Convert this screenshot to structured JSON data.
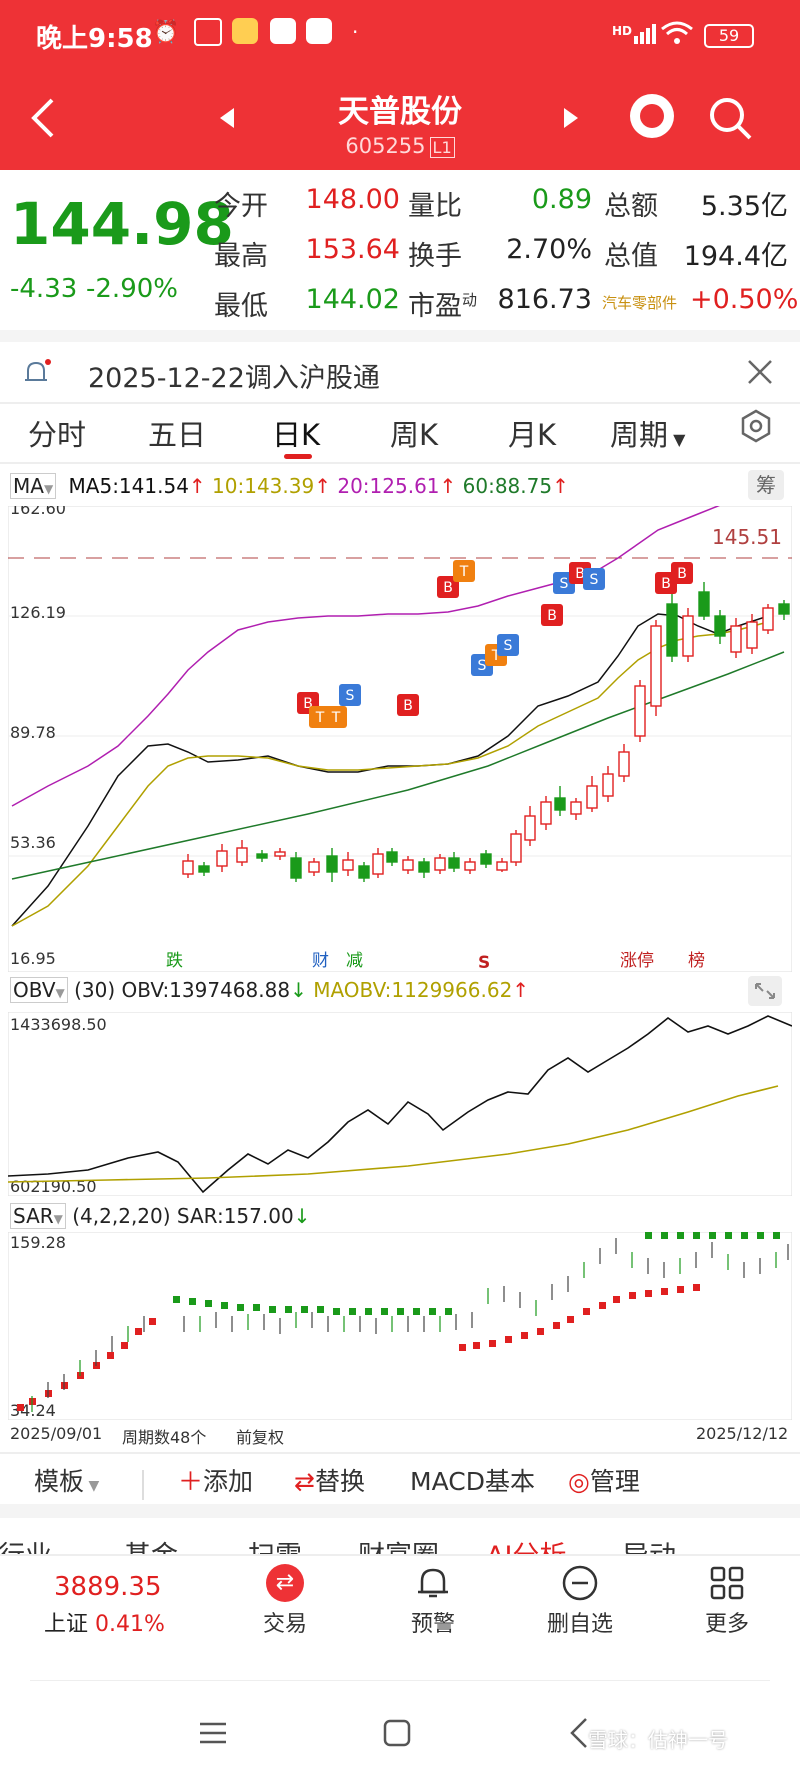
{
  "status_bar": {
    "time": "晚上9:58",
    "battery": "59",
    "network": "HD"
  },
  "header": {
    "title": "天普股份",
    "code": "605255",
    "code_tag": "L1"
  },
  "quote": {
    "price": "144.98",
    "change": "-4.33",
    "change_pct": "-2.90%",
    "stats": [
      {
        "label": "今开",
        "value": "148.00",
        "label2": "量比",
        "value2": "0.89",
        "label3": "总额",
        "value3": "5.35亿"
      },
      {
        "label": "最高",
        "value": "153.64",
        "label2": "换手",
        "value2": "2.70%",
        "label3": "总值",
        "value3": "194.4亿"
      },
      {
        "label": "最低",
        "value": "144.02",
        "label2": "市盈",
        "label2_sup": "动",
        "value2": "816.73",
        "label3": "汽车零部件",
        "value3": "+0.50%"
      }
    ]
  },
  "notice": {
    "text": "2025-12-22调入沪股通"
  },
  "tabs": [
    "分时",
    "五日",
    "日K",
    "周K",
    "月K",
    "周期"
  ],
  "active_tab": "日K",
  "main_chart": {
    "indicator": "MA",
    "ma_values": {
      "ma5": "MA5:141.54",
      "ma10": "10:143.39",
      "ma20": "20:125.61",
      "ma60": "60:88.75"
    },
    "fuquan_btn": "筹",
    "y_labels": [
      "162.60",
      "126.19",
      "89.78",
      "53.36",
      "16.95"
    ],
    "last_price_label": "145.51",
    "event_labels": [
      "跌",
      "财",
      "减",
      "S",
      "涨停",
      "榜"
    ]
  },
  "obv_chart": {
    "indicator": "OBV",
    "params": "(30)",
    "obv": "OBV:1397468.88",
    "maobv": "MAOBV:1129966.62",
    "y_max": "1433698.50",
    "y_min": "602190.50"
  },
  "sar_chart": {
    "indicator": "SAR",
    "params": "(4,2,2,20)",
    "sar": "SAR:157.00",
    "y_max": "159.28",
    "y_min": "34.24"
  },
  "footer_info": {
    "start_date": "2025/09/01",
    "period": "周期数48个",
    "adjust": "前复权",
    "end_date": "2025/12/12"
  },
  "toolbar": {
    "template": "模板",
    "add": "添加",
    "replace": "替换",
    "macd": "MACD基本",
    "manage": "管理"
  },
  "bottom_tabs_partial": [
    "行业",
    "基金",
    "扫雷",
    "财富圈",
    "AI分析",
    "异动"
  ],
  "index": {
    "value": "3889.35",
    "name": "上证",
    "pct": "0.41%"
  },
  "nav": {
    "trade": "交易",
    "alert": "预警",
    "remove": "删自选",
    "more": "更多"
  },
  "watermark": "雪球：估神一号",
  "colors": {
    "up": "#e02020",
    "down": "#1a9a1a",
    "header": "#ee3236",
    "ma5": "#111111",
    "ma10": "#b0a000",
    "ma20": "#b01fb0",
    "ma60": "#1f7a2a"
  }
}
